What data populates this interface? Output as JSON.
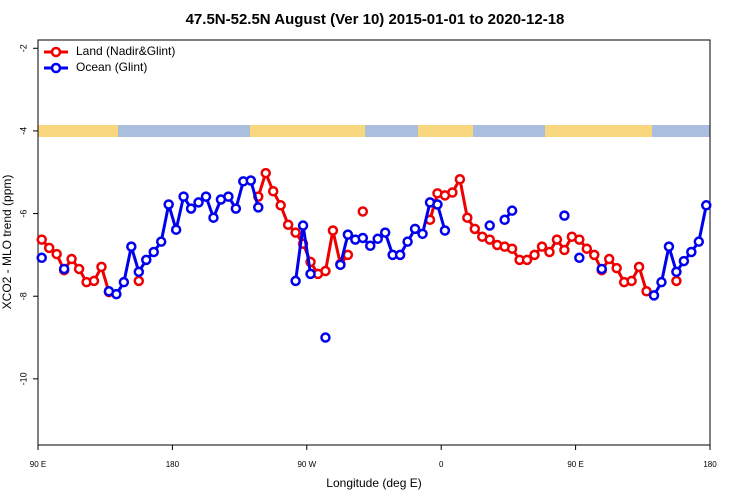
{
  "chart_data": {
    "type": "line",
    "title": "47.5N-52.5N August (Ver 10)   2015-01-01 to 2020-12-18",
    "x_label": "Longitude (deg E)",
    "y_label": "XCO2 - MLO trend (ppm)",
    "x": [
      92.5,
      97.5,
      102.5,
      107.5,
      112.5,
      117.5,
      122.5,
      127.5,
      132.5,
      137.5,
      142.5,
      147.5,
      152.5,
      157.5,
      162.5,
      167.5,
      172.5,
      177.5,
      182.5,
      187.5,
      192.5,
      197.5,
      202.5,
      207.5,
      212.5,
      217.5,
      222.5,
      227.5,
      232.5,
      237.5,
      242.5,
      247.5,
      252.5,
      257.5,
      262.5,
      267.5,
      272.5,
      277.5,
      282.5,
      287.5,
      292.5,
      297.5,
      302.5,
      307.5,
      312.5,
      317.5,
      322.5,
      327.5,
      332.5,
      337.5,
      342.5,
      347.5,
      352.5,
      357.5,
      362.5,
      367.5,
      372.5,
      377.5,
      382.5,
      387.5,
      392.5,
      397.5,
      402.5,
      407.5,
      412.5,
      417.5,
      422.5,
      427.5,
      432.5,
      437.5,
      442.5,
      447.5,
      452.5,
      457.5,
      462.5,
      467.5,
      472.5,
      477.5,
      482.5,
      487.5,
      492.5,
      497.5,
      502.5,
      507.5,
      512.5,
      517.5,
      522.5,
      527.5,
      532.5,
      537.5
    ],
    "series": [
      {
        "name": "Land (Nadir&Glint)",
        "color": "#ee0000",
        "values": [
          -6.63,
          -6.83,
          -6.98,
          -7.37,
          -7.1,
          -7.34,
          -7.66,
          -7.63,
          -7.29,
          -7.9,
          null,
          null,
          null,
          -7.63,
          null,
          null,
          null,
          null,
          null,
          null,
          null,
          null,
          null,
          null,
          null,
          null,
          null,
          null,
          null,
          -5.59,
          -5.02,
          -5.46,
          -5.8,
          -6.27,
          -6.46,
          -6.73,
          -7.17,
          -7.46,
          -7.39,
          -6.41,
          -7.22,
          -7.0,
          null,
          -5.95,
          null,
          null,
          null,
          null,
          null,
          null,
          null,
          null,
          -6.15,
          -5.51,
          -5.56,
          -5.49,
          -5.17,
          -6.1,
          -6.37,
          -6.56,
          -6.63,
          -6.76,
          -6.8,
          -6.85,
          -7.12,
          -7.12,
          -7.0,
          -6.8,
          -6.93,
          -6.63,
          -6.88,
          -6.56,
          -6.63,
          -6.85,
          -7.0,
          -7.37,
          -7.1,
          -7.32,
          -7.66,
          -7.63,
          -7.29,
          -7.88,
          null,
          null,
          null,
          -7.63,
          null,
          null,
          null,
          null
        ]
      },
      {
        "name": "Ocean (Glint)",
        "color": "#0000ee",
        "values": [
          -7.07,
          null,
          null,
          -7.34,
          null,
          null,
          null,
          null,
          null,
          -7.88,
          -7.95,
          -7.66,
          -6.8,
          -7.41,
          -7.12,
          -6.93,
          -6.68,
          -5.78,
          -6.39,
          -5.59,
          -5.88,
          -5.73,
          -5.59,
          -6.1,
          -5.66,
          -5.59,
          -5.88,
          -5.22,
          -5.2,
          -5.85,
          null,
          null,
          null,
          null,
          -7.63,
          -6.29,
          -7.46,
          null,
          -9.0,
          null,
          -7.24,
          -6.51,
          -6.63,
          -6.59,
          -6.78,
          -6.61,
          -6.46,
          -7.0,
          -7.0,
          -6.68,
          -6.37,
          -6.49,
          -5.73,
          -5.78,
          -6.41,
          null,
          null,
          null,
          null,
          null,
          -6.29,
          null,
          -6.15,
          -5.93,
          null,
          null,
          null,
          null,
          null,
          null,
          -6.05,
          null,
          -7.07,
          null,
          null,
          -7.34,
          null,
          null,
          null,
          null,
          null,
          null,
          -7.98,
          -7.66,
          -6.8,
          -7.41,
          -7.15,
          -6.93,
          -6.68,
          -5.8
        ]
      }
    ],
    "xlim": [
      90,
      540
    ],
    "xticks": [
      {
        "value": 90,
        "label": "90 E"
      },
      180,
      {
        "value": 270,
        "label": "90 W"
      },
      {
        "value": 360,
        "label": "0"
      },
      {
        "value": 450,
        "label": "90 E"
      },
      {
        "value": 540,
        "label": "180"
      }
    ],
    "ylim": [
      -11.6,
      -1.8
    ],
    "yticks": [
      -2,
      -4,
      -6,
      -8,
      -10
    ],
    "legend": "top-left"
  }
}
